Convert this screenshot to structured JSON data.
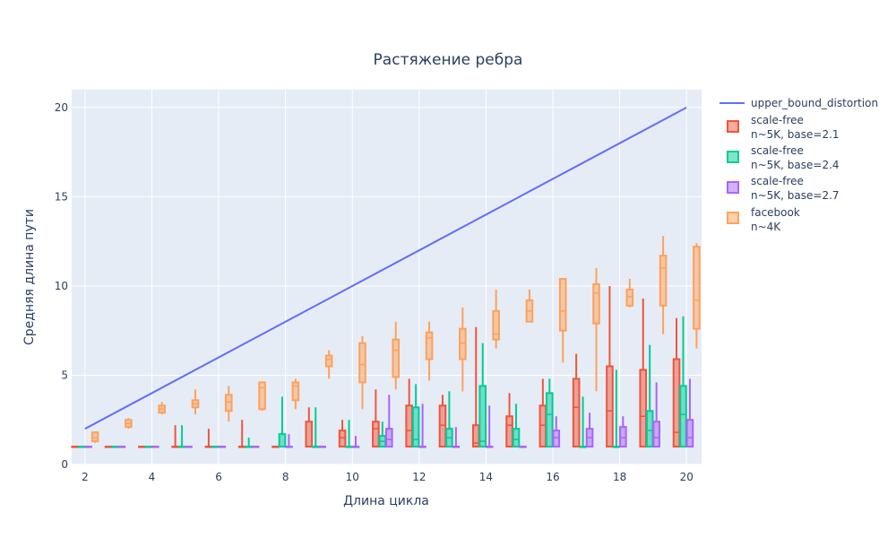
{
  "chart_data": {
    "type": "box",
    "title": "Растяжение ребра",
    "xlabel": "Длина цикла",
    "ylabel": "Средняя длина пути",
    "xlim": [
      1.6,
      20.45
    ],
    "ylim": [
      0,
      21
    ],
    "x_ticks": [
      2,
      4,
      6,
      8,
      10,
      12,
      14,
      16,
      18,
      20
    ],
    "y_ticks": [
      0,
      5,
      10,
      15,
      20
    ],
    "grid": true,
    "legend_position": "top-right",
    "plot_background": "#e5ecf6",
    "line_series": {
      "name": "upper_bound_distortion",
      "color": "#636efa",
      "x": [
        2,
        20
      ],
      "y": [
        2,
        20
      ]
    },
    "box_series": [
      {
        "name_lines": [
          "scale-free",
          "n~5K, base=2.1"
        ],
        "color": "#ef553b",
        "boxes": [
          {
            "x": 2,
            "min": 1,
            "q1": 1,
            "median": 1,
            "q3": 1,
            "max": 1
          },
          {
            "x": 3,
            "min": 1,
            "q1": 1,
            "median": 1,
            "q3": 1,
            "max": 1
          },
          {
            "x": 4,
            "min": 1,
            "q1": 1,
            "median": 1,
            "q3": 1,
            "max": 1
          },
          {
            "x": 5,
            "min": 1,
            "q1": 1,
            "median": 1,
            "q3": 1,
            "max": 2.2
          },
          {
            "x": 6,
            "min": 1,
            "q1": 1,
            "median": 1,
            "q3": 1,
            "max": 2
          },
          {
            "x": 7,
            "min": 1,
            "q1": 1,
            "median": 1,
            "q3": 1,
            "max": 2.5
          },
          {
            "x": 8,
            "min": 1,
            "q1": 1,
            "median": 1,
            "q3": 1,
            "max": 1
          },
          {
            "x": 9,
            "min": 1,
            "q1": 1,
            "median": 1,
            "q3": 2.4,
            "max": 3.2
          },
          {
            "x": 10,
            "min": 1,
            "q1": 1,
            "median": 1.5,
            "q3": 1.9,
            "max": 2.5
          },
          {
            "x": 11,
            "min": 1,
            "q1": 1,
            "median": 2,
            "q3": 2.4,
            "max": 4.2
          },
          {
            "x": 12,
            "min": 1,
            "q1": 1,
            "median": 1.9,
            "q3": 3.3,
            "max": 4.8
          },
          {
            "x": 13,
            "min": 1,
            "q1": 1,
            "median": 2.2,
            "q3": 3.3,
            "max": 3.9
          },
          {
            "x": 14,
            "min": 1,
            "q1": 1,
            "median": 1.2,
            "q3": 2.2,
            "max": 7.7
          },
          {
            "x": 15,
            "min": 1,
            "q1": 1,
            "median": 2.2,
            "q3": 2.7,
            "max": 4
          },
          {
            "x": 16,
            "min": 1,
            "q1": 1,
            "median": 2.2,
            "q3": 3.3,
            "max": 4.8
          },
          {
            "x": 17,
            "min": 1,
            "q1": 1,
            "median": 3.2,
            "q3": 4.8,
            "max": 6.2
          },
          {
            "x": 18,
            "min": 1,
            "q1": 1,
            "median": 3,
            "q3": 5.5,
            "max": 10
          },
          {
            "x": 19,
            "min": 1,
            "q1": 1,
            "median": 2.7,
            "q3": 5.3,
            "max": 9.3
          },
          {
            "x": 20,
            "min": 1,
            "q1": 1,
            "median": 1.8,
            "q3": 5.9,
            "max": 8.2
          }
        ]
      },
      {
        "name_lines": [
          "scale-free",
          "n~5K, base=2.4"
        ],
        "color": "#00cc96",
        "boxes": [
          {
            "x": 2,
            "min": 1,
            "q1": 1,
            "median": 1,
            "q3": 1,
            "max": 1
          },
          {
            "x": 3,
            "min": 1,
            "q1": 1,
            "median": 1,
            "q3": 1,
            "max": 1
          },
          {
            "x": 4,
            "min": 1,
            "q1": 1,
            "median": 1,
            "q3": 1,
            "max": 1
          },
          {
            "x": 5,
            "min": 1,
            "q1": 1,
            "median": 1,
            "q3": 1,
            "max": 2.2
          },
          {
            "x": 6,
            "min": 1,
            "q1": 1,
            "median": 1,
            "q3": 1,
            "max": 1
          },
          {
            "x": 7,
            "min": 1,
            "q1": 1,
            "median": 1,
            "q3": 1,
            "max": 1.5
          },
          {
            "x": 8,
            "min": 1,
            "q1": 1,
            "median": 1,
            "q3": 1.7,
            "max": 3.8
          },
          {
            "x": 9,
            "min": 1,
            "q1": 1,
            "median": 1,
            "q3": 1,
            "max": 3.2
          },
          {
            "x": 10,
            "min": 1,
            "q1": 1,
            "median": 1,
            "q3": 1,
            "max": 2.5
          },
          {
            "x": 11,
            "min": 1,
            "q1": 1,
            "median": 1.3,
            "q3": 1.6,
            "max": 2.4
          },
          {
            "x": 12,
            "min": 1,
            "q1": 1,
            "median": 1.4,
            "q3": 3.2,
            "max": 4.5
          },
          {
            "x": 13,
            "min": 1,
            "q1": 1,
            "median": 1.5,
            "q3": 2,
            "max": 4.1
          },
          {
            "x": 14,
            "min": 1,
            "q1": 1,
            "median": 1.3,
            "q3": 4.4,
            "max": 6.8
          },
          {
            "x": 15,
            "min": 1,
            "q1": 1,
            "median": 1.4,
            "q3": 2,
            "max": 3.4
          },
          {
            "x": 16,
            "min": 1,
            "q1": 1,
            "median": 2.8,
            "q3": 4,
            "max": 4.8
          },
          {
            "x": 17,
            "min": 1,
            "q1": 1,
            "median": 1,
            "q3": 1,
            "max": 3.8
          },
          {
            "x": 18,
            "min": 1,
            "q1": 1,
            "median": 1,
            "q3": 1,
            "max": 5.3
          },
          {
            "x": 19,
            "min": 1,
            "q1": 1,
            "median": 1.9,
            "q3": 3,
            "max": 6.7
          },
          {
            "x": 20,
            "min": 1,
            "q1": 1,
            "median": 2.8,
            "q3": 4.4,
            "max": 8.3
          }
        ]
      },
      {
        "name_lines": [
          "scale-free",
          "n~5K, base=2.7"
        ],
        "color": "#ab63fa",
        "boxes": [
          {
            "x": 2,
            "min": 1,
            "q1": 1,
            "median": 1,
            "q3": 1,
            "max": 1
          },
          {
            "x": 3,
            "min": 1,
            "q1": 1,
            "median": 1,
            "q3": 1,
            "max": 1
          },
          {
            "x": 4,
            "min": 1,
            "q1": 1,
            "median": 1,
            "q3": 1,
            "max": 1
          },
          {
            "x": 5,
            "min": 1,
            "q1": 1,
            "median": 1,
            "q3": 1,
            "max": 1
          },
          {
            "x": 6,
            "min": 1,
            "q1": 1,
            "median": 1,
            "q3": 1,
            "max": 1
          },
          {
            "x": 7,
            "min": 1,
            "q1": 1,
            "median": 1,
            "q3": 1,
            "max": 1
          },
          {
            "x": 8,
            "min": 1,
            "q1": 1,
            "median": 1,
            "q3": 1,
            "max": 1.7
          },
          {
            "x": 9,
            "min": 1,
            "q1": 1,
            "median": 1,
            "q3": 1,
            "max": 1
          },
          {
            "x": 10,
            "min": 1,
            "q1": 1,
            "median": 1,
            "q3": 1,
            "max": 1.6
          },
          {
            "x": 11,
            "min": 1,
            "q1": 1,
            "median": 1.4,
            "q3": 2,
            "max": 3.9
          },
          {
            "x": 12,
            "min": 1,
            "q1": 1,
            "median": 1,
            "q3": 1,
            "max": 3.4
          },
          {
            "x": 13,
            "min": 1,
            "q1": 1,
            "median": 1,
            "q3": 1,
            "max": 2.1
          },
          {
            "x": 14,
            "min": 1,
            "q1": 1,
            "median": 1,
            "q3": 1,
            "max": 3.3
          },
          {
            "x": 15,
            "min": 1,
            "q1": 1,
            "median": 1,
            "q3": 1,
            "max": 1
          },
          {
            "x": 16,
            "min": 1,
            "q1": 1,
            "median": 1.5,
            "q3": 1.9,
            "max": 2.7
          },
          {
            "x": 17,
            "min": 1,
            "q1": 1,
            "median": 1.5,
            "q3": 2,
            "max": 2.9
          },
          {
            "x": 18,
            "min": 1,
            "q1": 1,
            "median": 1.5,
            "q3": 2.1,
            "max": 2.7
          },
          {
            "x": 19,
            "min": 1,
            "q1": 1,
            "median": 1.5,
            "q3": 2.4,
            "max": 4.6
          },
          {
            "x": 20,
            "min": 1,
            "q1": 1,
            "median": 1.5,
            "q3": 2.5,
            "max": 4.8
          }
        ]
      },
      {
        "name_lines": [
          "facebook",
          "n~4K"
        ],
        "color": "#ffa15a",
        "boxes": [
          {
            "x": 2,
            "min": 1.2,
            "q1": 1.3,
            "median": 1.5,
            "q3": 1.8,
            "max": 1.8
          },
          {
            "x": 3,
            "min": 2,
            "q1": 2.1,
            "median": 2.3,
            "q3": 2.5,
            "max": 2.6
          },
          {
            "x": 4,
            "min": 2.8,
            "q1": 2.9,
            "median": 3.1,
            "q3": 3.3,
            "max": 3.5
          },
          {
            "x": 5,
            "min": 2.8,
            "q1": 3.2,
            "median": 3.4,
            "q3": 3.6,
            "max": 4.2
          },
          {
            "x": 6,
            "min": 2.4,
            "q1": 3,
            "median": 3.5,
            "q3": 3.9,
            "max": 4.4
          },
          {
            "x": 7,
            "min": 3,
            "q1": 3.1,
            "median": 4.3,
            "q3": 4.6,
            "max": 4.6
          },
          {
            "x": 8,
            "min": 3.1,
            "q1": 3.6,
            "median": 4.4,
            "q3": 4.6,
            "max": 4.8
          },
          {
            "x": 9,
            "min": 4.8,
            "q1": 5.5,
            "median": 5.9,
            "q3": 6.1,
            "max": 6.4
          },
          {
            "x": 10,
            "min": 3.1,
            "q1": 4.6,
            "median": 5.6,
            "q3": 6.8,
            "max": 7.2
          },
          {
            "x": 11,
            "min": 4.2,
            "q1": 4.9,
            "median": 6.4,
            "q3": 7,
            "max": 8
          },
          {
            "x": 12,
            "min": 4.7,
            "q1": 5.9,
            "median": 7.1,
            "q3": 7.4,
            "max": 8
          },
          {
            "x": 13,
            "min": 4.1,
            "q1": 5.9,
            "median": 6.8,
            "q3": 7.6,
            "max": 8.8
          },
          {
            "x": 14,
            "min": 6.5,
            "q1": 7,
            "median": 7.3,
            "q3": 8.6,
            "max": 9.8
          },
          {
            "x": 15,
            "min": 8,
            "q1": 8,
            "median": 8.6,
            "q3": 9.2,
            "max": 9.8
          },
          {
            "x": 16,
            "min": 5.7,
            "q1": 7.5,
            "median": 8.6,
            "q3": 10.4,
            "max": 10.4
          },
          {
            "x": 17,
            "min": 4.1,
            "q1": 7.9,
            "median": 9.6,
            "q3": 10.1,
            "max": 11
          },
          {
            "x": 18,
            "min": 8.8,
            "q1": 8.9,
            "median": 9.4,
            "q3": 9.8,
            "max": 10.4
          },
          {
            "x": 19,
            "min": 7.3,
            "q1": 8.9,
            "median": 11,
            "q3": 11.7,
            "max": 12.8
          },
          {
            "x": 20,
            "min": 6.5,
            "q1": 7.6,
            "median": 9.2,
            "q3": 12.2,
            "max": 12.4
          }
        ]
      }
    ]
  }
}
